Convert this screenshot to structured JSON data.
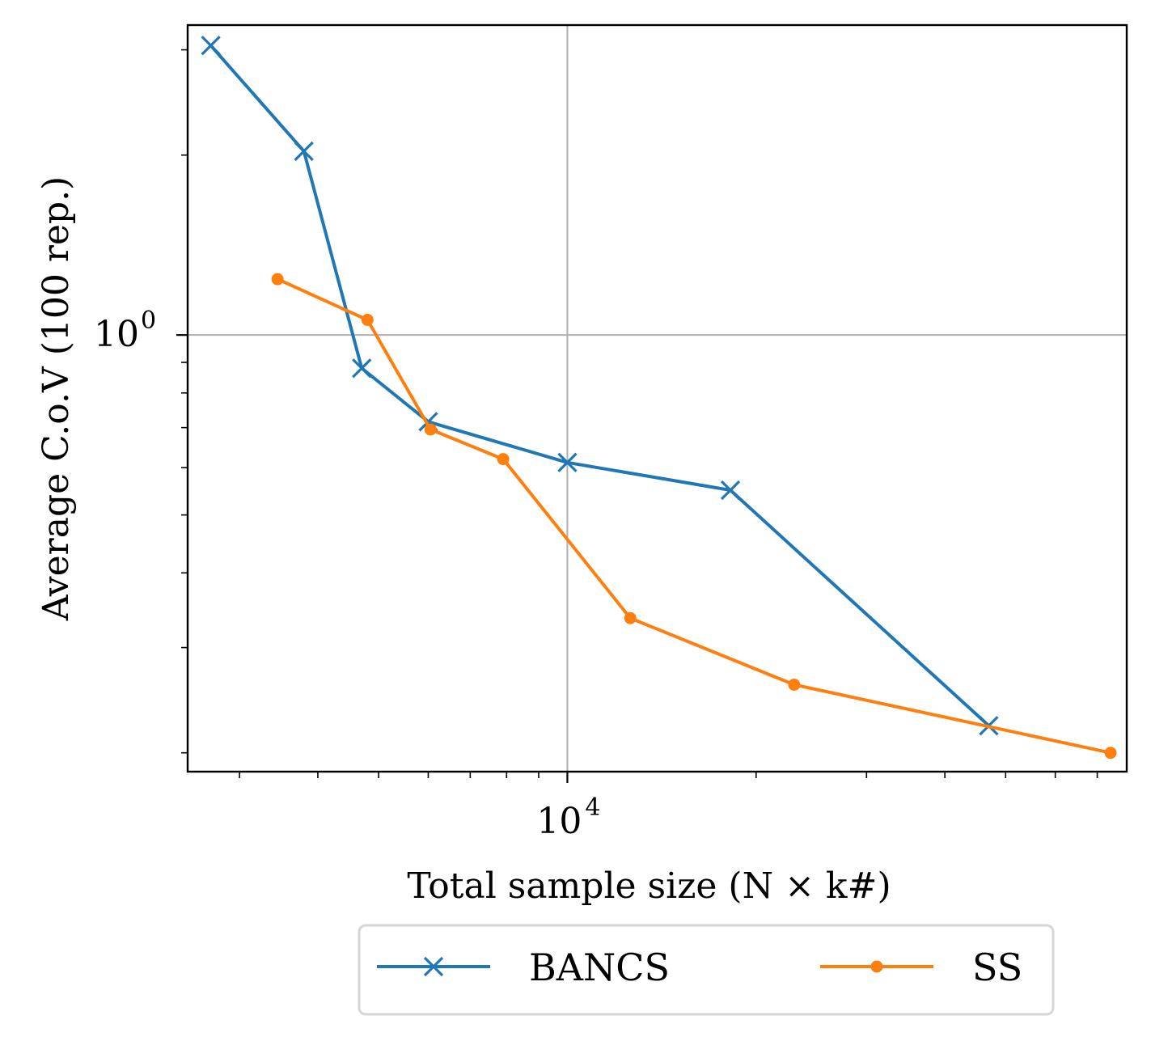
{
  "chart_data": {
    "type": "line",
    "xlabel": "Total sample size (N × k#)",
    "ylabel": "Average C.o.V (100 rep.)",
    "x_scale": "log",
    "y_scale": "log",
    "xlim": [
      2480,
      78000
    ],
    "ylim": [
      0.186,
      3.3
    ],
    "x_major_ticks": [
      {
        "value": 10000,
        "base": "10",
        "exp": "4"
      }
    ],
    "y_major_ticks": [
      {
        "value": 1,
        "base": "10",
        "exp": "0"
      }
    ],
    "grid": true,
    "legend_placement": "below",
    "legend_columns": 2,
    "series": [
      {
        "name": "BANCS",
        "color": "#1f77b4",
        "marker": "x",
        "x": [
          2700,
          3800,
          4700,
          6000,
          10000,
          18200,
          47000
        ],
        "y": [
          3.05,
          2.03,
          0.88,
          0.716,
          0.612,
          0.55,
          0.222
        ]
      },
      {
        "name": "SS",
        "color": "#ff7f0e",
        "marker": "o",
        "x": [
          3450,
          4800,
          6050,
          7900,
          12600,
          23000,
          73500
        ],
        "y": [
          1.24,
          1.06,
          0.695,
          0.62,
          0.336,
          0.26,
          0.2
        ]
      }
    ]
  }
}
